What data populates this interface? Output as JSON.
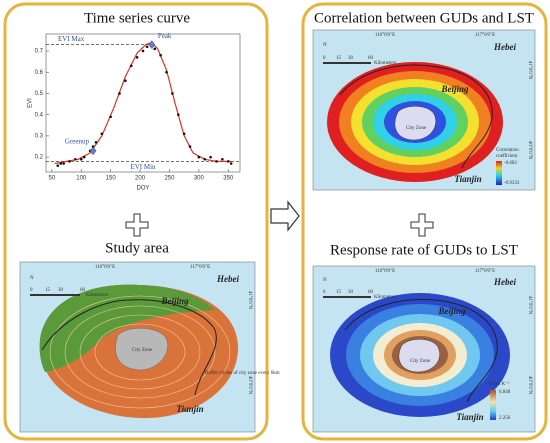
{
  "left_panel": {
    "top_title": "Time series curve",
    "chart": {
      "type": "scatter",
      "x_label": "DOY",
      "y_label": "EVI",
      "xlim": [
        40,
        370
      ],
      "ylim": [
        0.13,
        0.78
      ],
      "xticks": [
        50,
        100,
        150,
        200,
        250,
        300,
        350
      ],
      "yticks": [
        0.2,
        0.3,
        0.4,
        0.5,
        0.6,
        0.7
      ],
      "points": {
        "color": "#111111",
        "x": [
          60,
          65,
          70,
          80,
          90,
          100,
          105,
          115,
          120,
          125,
          135,
          150,
          165,
          175,
          185,
          195,
          205,
          212,
          220,
          225,
          235,
          245,
          255,
          265,
          275,
          285,
          300,
          310,
          320,
          330,
          340,
          350,
          355
        ],
        "values": [
          0.16,
          0.17,
          0.17,
          0.18,
          0.19,
          0.19,
          0.2,
          0.23,
          0.25,
          0.27,
          0.31,
          0.39,
          0.5,
          0.56,
          0.63,
          0.67,
          0.7,
          0.72,
          0.73,
          0.71,
          0.68,
          0.6,
          0.5,
          0.4,
          0.31,
          0.25,
          0.2,
          0.19,
          0.2,
          0.18,
          0.19,
          0.18,
          0.17
        ]
      },
      "fit": {
        "color": "#e03020",
        "x": [
          55,
          75,
          95,
          115,
          135,
          155,
          175,
          195,
          210,
          220,
          230,
          245,
          260,
          275,
          290,
          310,
          330,
          355
        ],
        "values": [
          0.17,
          0.18,
          0.19,
          0.22,
          0.3,
          0.43,
          0.58,
          0.69,
          0.73,
          0.74,
          0.71,
          0.61,
          0.45,
          0.3,
          0.22,
          0.19,
          0.18,
          0.18
        ]
      },
      "hlines": [
        {
          "text": "EVI Max",
          "y": 0.73
        },
        {
          "text": "EVI Min",
          "y": 0.18
        }
      ],
      "markers": [
        {
          "text": "Greenup",
          "x": 120,
          "y": 0.23
        },
        {
          "text": "Peak",
          "x": 220,
          "y": 0.73
        }
      ]
    },
    "bottom_title": "Study area",
    "map": {
      "north": "N",
      "scale": [
        "0",
        "15",
        "30",
        "60"
      ],
      "scale_unit": "Kilometers",
      "lon_labels": [
        "116°0'0\"E",
        "117°0'0\"E"
      ],
      "lat_labels": [
        "41°0'0\"N",
        "40°0'0\"N"
      ],
      "places": [
        "Hebei",
        "Beijing",
        "Tianjin",
        "City Zone"
      ],
      "legend": "Buffer circles of city zone every 6km"
    }
  },
  "right_panel": {
    "top_title": "Correlation between GUDs and LST",
    "top_map": {
      "north": "N",
      "scale": [
        "0",
        "15",
        "30",
        "60"
      ],
      "scale_unit": "Kilometers",
      "lon_labels": [
        "116°0'0\"E",
        "117°0'0\"E"
      ],
      "lat_labels": [
        "41°0'0\"N",
        "40°0'0\"N"
      ],
      "places": [
        "Hebei",
        "Beijing",
        "Tianjin",
        "City Zone"
      ],
      "legend_title": [
        "Correlation",
        "coefficient"
      ],
      "legend_values": [
        "-0.682",
        "-0.9333"
      ]
    },
    "bottom_title": "Response rate of GUDs to LST",
    "bottom_map": {
      "north": "N",
      "scale": [
        "0",
        "15",
        "30",
        "60"
      ],
      "scale_unit": "Kilometers",
      "lon_labels": [
        "116°0'0\"E",
        "117°0'0\"E"
      ],
      "lat_labels": [
        "41°0'0\"N",
        "40°0'0\"N"
      ],
      "places": [
        "Hebei",
        "Beijing",
        "Tianjin",
        "City Zone"
      ],
      "legend_title": [
        "Days K⁻¹"
      ],
      "legend_values": [
        "6.848",
        "2.256"
      ]
    }
  }
}
